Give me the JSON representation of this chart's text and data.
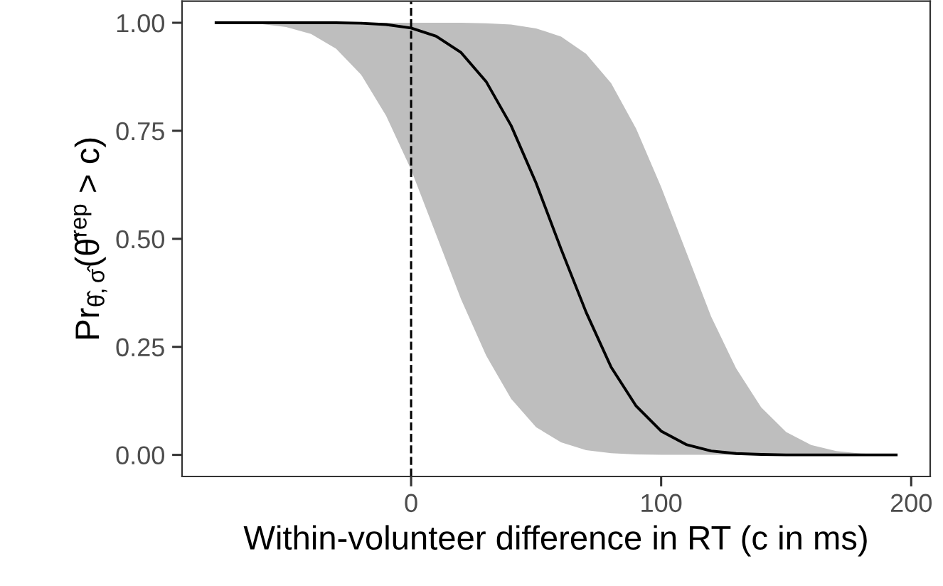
{
  "chart_data": {
    "type": "line",
    "xlabel": "Within-volunteer difference in RT (c in ms)",
    "ylabel": "Pr$_{θ̂,σ̂}$(θ̂$^{rep}$ > c)",
    "x": [
      -78,
      -70,
      -60,
      -50,
      -40,
      -30,
      -20,
      -10,
      0,
      10,
      20,
      30,
      40,
      50,
      60,
      70,
      80,
      90,
      100,
      110,
      120,
      130,
      140,
      150,
      160,
      170,
      180,
      190,
      194
    ],
    "series": [
      {
        "color": "#000000",
        "values": [
          1,
          1,
          1,
          1,
          1,
          1,
          0.999,
          0.996,
          0.988,
          0.969,
          0.931,
          0.864,
          0.762,
          0.629,
          0.476,
          0.33,
          0.203,
          0.113,
          0.055,
          0.024,
          0.009,
          0.003,
          0.001,
          0,
          0,
          0,
          0,
          0,
          0
        ],
        "lower": [
          1.0,
          0.999,
          0.997,
          0.99,
          0.974,
          0.94,
          0.88,
          0.785,
          0.66,
          0.51,
          0.36,
          0.23,
          0.13,
          0.064,
          0.029,
          0.011,
          0.004,
          0.001,
          0,
          0,
          0,
          0,
          0,
          0,
          0,
          0,
          0,
          0,
          0
        ],
        "upper": [
          1,
          1,
          1,
          1,
          1,
          1,
          1,
          1,
          1,
          1,
          1,
          0.999,
          0.996,
          0.987,
          0.968,
          0.928,
          0.86,
          0.755,
          0.62,
          0.47,
          0.32,
          0.2,
          0.11,
          0.053,
          0.023,
          0.009,
          0.003,
          0.001,
          0
        ]
      }
    ],
    "xlim": [
      -91.6,
      207.6
    ],
    "xticks": [
      0,
      100,
      200
    ],
    "ylim": [
      -0.05,
      1.05
    ],
    "yticks": [
      {
        "value": 0,
        "label": "0.00"
      },
      {
        "value": 0.25,
        "label": "0.25"
      },
      {
        "value": 0.5,
        "label": "0.50"
      },
      {
        "value": 0.75,
        "label": "0.75"
      },
      {
        "value": 1,
        "label": "1.00"
      }
    ],
    "ref_lines": [
      {
        "axis": "x",
        "value": 0,
        "line_style": "dashed",
        "color": "#000000"
      }
    ],
    "grid": false,
    "marker": "none",
    "line_style": "solid"
  }
}
